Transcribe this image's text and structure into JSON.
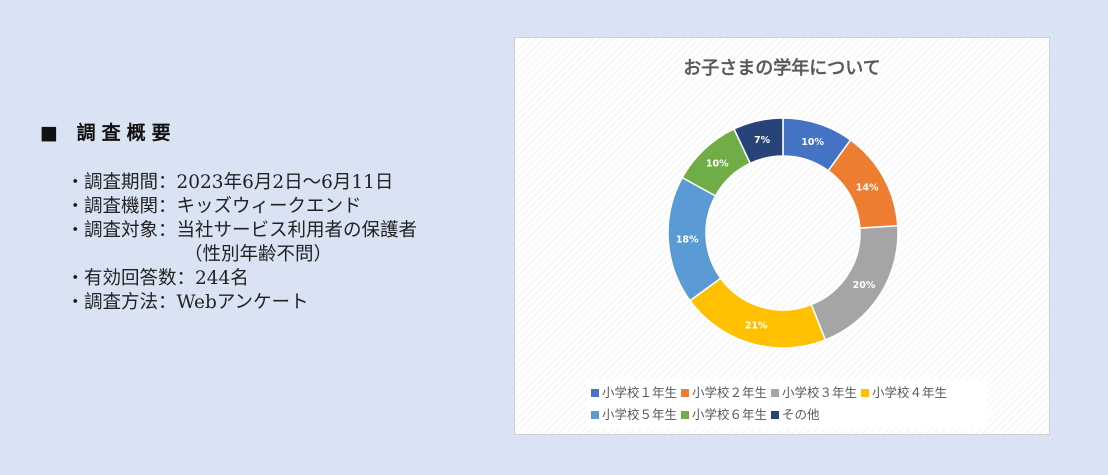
{
  "survey": {
    "heading": "■ 調査概要",
    "items": [
      {
        "bullet": "・",
        "text": "調査期間：2023年6月2日～6月11日"
      },
      {
        "bullet": "・",
        "text": "調査機関：キッズウィークエンド"
      },
      {
        "bullet": "・",
        "text": "調査対象：当社サービス利用者の保護者",
        "sub": "（性別年齢不問）"
      },
      {
        "bullet": "・",
        "text": "有効回答数：244名"
      },
      {
        "bullet": "・",
        "text": "調査方法：Webアンケート"
      }
    ]
  },
  "chart_data": {
    "type": "pie",
    "variant": "donut",
    "title": "お子さまの学年について",
    "categories": [
      "小学校１年生",
      "小学校２年生",
      "小学校３年生",
      "小学校４年生",
      "小学校５年生",
      "小学校６年生",
      "その他"
    ],
    "values": [
      10,
      14,
      20,
      21,
      18,
      10,
      7
    ],
    "value_labels": [
      "10%",
      "14%",
      "20%",
      "21%",
      "18%",
      "10%",
      "7%"
    ],
    "colors": [
      "#4472c4",
      "#ed7d31",
      "#a5a5a5",
      "#ffc000",
      "#5b9bd5",
      "#70ad47",
      "#264478"
    ],
    "legend_position": "bottom"
  }
}
